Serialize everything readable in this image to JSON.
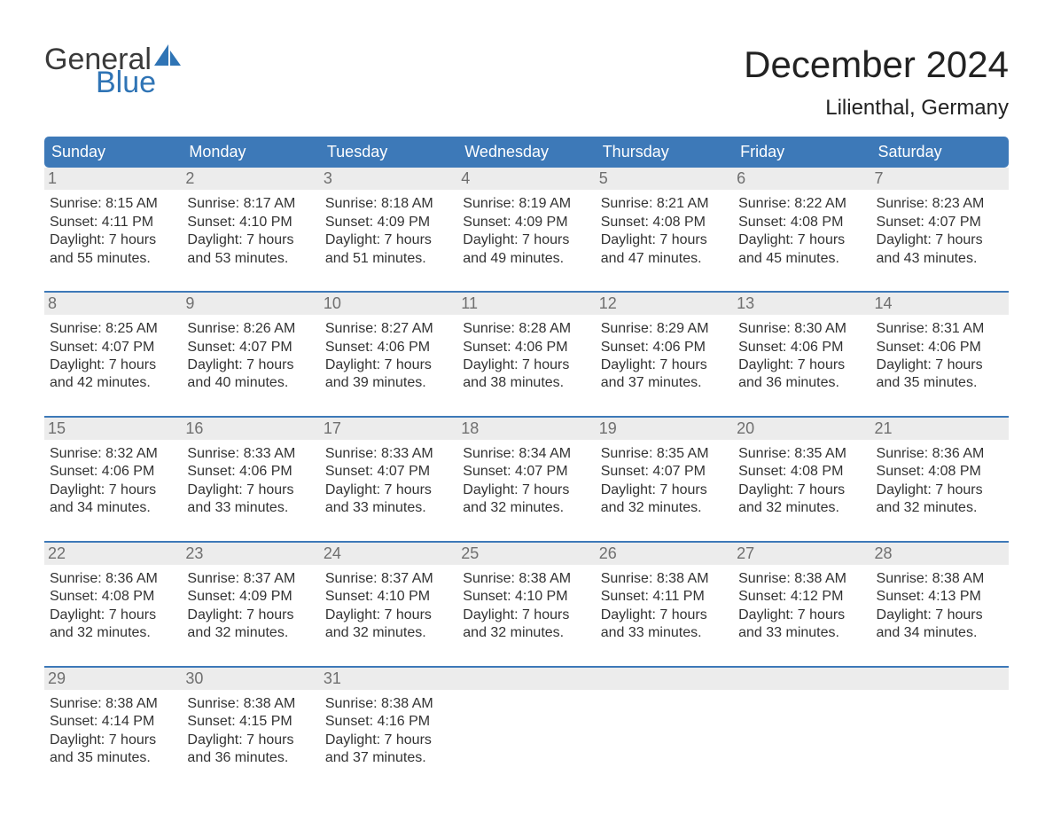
{
  "brand": {
    "word1": "General",
    "word2": "Blue",
    "sail_color": "#2f74b5",
    "text_dark": "#3a3a3a"
  },
  "title": "December 2024",
  "location": "Lilienthal, Germany",
  "colors": {
    "header_bg": "#3d79b8",
    "header_text": "#ffffff",
    "daynum_bg": "#ececec",
    "daynum_text": "#6f6f6f",
    "body_text": "#333333",
    "rule": "#3d79b8",
    "page_bg": "#ffffff"
  },
  "fonts": {
    "title_size": 42,
    "location_size": 24,
    "dow_size": 18,
    "daynum_size": 18,
    "body_size": 16
  },
  "days_of_week": [
    "Sunday",
    "Monday",
    "Tuesday",
    "Wednesday",
    "Thursday",
    "Friday",
    "Saturday"
  ],
  "weeks": [
    [
      {
        "n": "1",
        "sunrise": "8:15 AM",
        "sunset": "4:11 PM",
        "dl1": "Daylight: 7 hours",
        "dl2": "and 55 minutes."
      },
      {
        "n": "2",
        "sunrise": "8:17 AM",
        "sunset": "4:10 PM",
        "dl1": "Daylight: 7 hours",
        "dl2": "and 53 minutes."
      },
      {
        "n": "3",
        "sunrise": "8:18 AM",
        "sunset": "4:09 PM",
        "dl1": "Daylight: 7 hours",
        "dl2": "and 51 minutes."
      },
      {
        "n": "4",
        "sunrise": "8:19 AM",
        "sunset": "4:09 PM",
        "dl1": "Daylight: 7 hours",
        "dl2": "and 49 minutes."
      },
      {
        "n": "5",
        "sunrise": "8:21 AM",
        "sunset": "4:08 PM",
        "dl1": "Daylight: 7 hours",
        "dl2": "and 47 minutes."
      },
      {
        "n": "6",
        "sunrise": "8:22 AM",
        "sunset": "4:08 PM",
        "dl1": "Daylight: 7 hours",
        "dl2": "and 45 minutes."
      },
      {
        "n": "7",
        "sunrise": "8:23 AM",
        "sunset": "4:07 PM",
        "dl1": "Daylight: 7 hours",
        "dl2": "and 43 minutes."
      }
    ],
    [
      {
        "n": "8",
        "sunrise": "8:25 AM",
        "sunset": "4:07 PM",
        "dl1": "Daylight: 7 hours",
        "dl2": "and 42 minutes."
      },
      {
        "n": "9",
        "sunrise": "8:26 AM",
        "sunset": "4:07 PM",
        "dl1": "Daylight: 7 hours",
        "dl2": "and 40 minutes."
      },
      {
        "n": "10",
        "sunrise": "8:27 AM",
        "sunset": "4:06 PM",
        "dl1": "Daylight: 7 hours",
        "dl2": "and 39 minutes."
      },
      {
        "n": "11",
        "sunrise": "8:28 AM",
        "sunset": "4:06 PM",
        "dl1": "Daylight: 7 hours",
        "dl2": "and 38 minutes."
      },
      {
        "n": "12",
        "sunrise": "8:29 AM",
        "sunset": "4:06 PM",
        "dl1": "Daylight: 7 hours",
        "dl2": "and 37 minutes."
      },
      {
        "n": "13",
        "sunrise": "8:30 AM",
        "sunset": "4:06 PM",
        "dl1": "Daylight: 7 hours",
        "dl2": "and 36 minutes."
      },
      {
        "n": "14",
        "sunrise": "8:31 AM",
        "sunset": "4:06 PM",
        "dl1": "Daylight: 7 hours",
        "dl2": "and 35 minutes."
      }
    ],
    [
      {
        "n": "15",
        "sunrise": "8:32 AM",
        "sunset": "4:06 PM",
        "dl1": "Daylight: 7 hours",
        "dl2": "and 34 minutes."
      },
      {
        "n": "16",
        "sunrise": "8:33 AM",
        "sunset": "4:06 PM",
        "dl1": "Daylight: 7 hours",
        "dl2": "and 33 minutes."
      },
      {
        "n": "17",
        "sunrise": "8:33 AM",
        "sunset": "4:07 PM",
        "dl1": "Daylight: 7 hours",
        "dl2": "and 33 minutes."
      },
      {
        "n": "18",
        "sunrise": "8:34 AM",
        "sunset": "4:07 PM",
        "dl1": "Daylight: 7 hours",
        "dl2": "and 32 minutes."
      },
      {
        "n": "19",
        "sunrise": "8:35 AM",
        "sunset": "4:07 PM",
        "dl1": "Daylight: 7 hours",
        "dl2": "and 32 minutes."
      },
      {
        "n": "20",
        "sunrise": "8:35 AM",
        "sunset": "4:08 PM",
        "dl1": "Daylight: 7 hours",
        "dl2": "and 32 minutes."
      },
      {
        "n": "21",
        "sunrise": "8:36 AM",
        "sunset": "4:08 PM",
        "dl1": "Daylight: 7 hours",
        "dl2": "and 32 minutes."
      }
    ],
    [
      {
        "n": "22",
        "sunrise": "8:36 AM",
        "sunset": "4:08 PM",
        "dl1": "Daylight: 7 hours",
        "dl2": "and 32 minutes."
      },
      {
        "n": "23",
        "sunrise": "8:37 AM",
        "sunset": "4:09 PM",
        "dl1": "Daylight: 7 hours",
        "dl2": "and 32 minutes."
      },
      {
        "n": "24",
        "sunrise": "8:37 AM",
        "sunset": "4:10 PM",
        "dl1": "Daylight: 7 hours",
        "dl2": "and 32 minutes."
      },
      {
        "n": "25",
        "sunrise": "8:38 AM",
        "sunset": "4:10 PM",
        "dl1": "Daylight: 7 hours",
        "dl2": "and 32 minutes."
      },
      {
        "n": "26",
        "sunrise": "8:38 AM",
        "sunset": "4:11 PM",
        "dl1": "Daylight: 7 hours",
        "dl2": "and 33 minutes."
      },
      {
        "n": "27",
        "sunrise": "8:38 AM",
        "sunset": "4:12 PM",
        "dl1": "Daylight: 7 hours",
        "dl2": "and 33 minutes."
      },
      {
        "n": "28",
        "sunrise": "8:38 AM",
        "sunset": "4:13 PM",
        "dl1": "Daylight: 7 hours",
        "dl2": "and 34 minutes."
      }
    ],
    [
      {
        "n": "29",
        "sunrise": "8:38 AM",
        "sunset": "4:14 PM",
        "dl1": "Daylight: 7 hours",
        "dl2": "and 35 minutes."
      },
      {
        "n": "30",
        "sunrise": "8:38 AM",
        "sunset": "4:15 PM",
        "dl1": "Daylight: 7 hours",
        "dl2": "and 36 minutes."
      },
      {
        "n": "31",
        "sunrise": "8:38 AM",
        "sunset": "4:16 PM",
        "dl1": "Daylight: 7 hours",
        "dl2": "and 37 minutes."
      },
      {
        "empty": true
      },
      {
        "empty": true
      },
      {
        "empty": true
      },
      {
        "empty": true
      }
    ]
  ],
  "labels": {
    "sunrise": "Sunrise: ",
    "sunset": "Sunset: "
  }
}
